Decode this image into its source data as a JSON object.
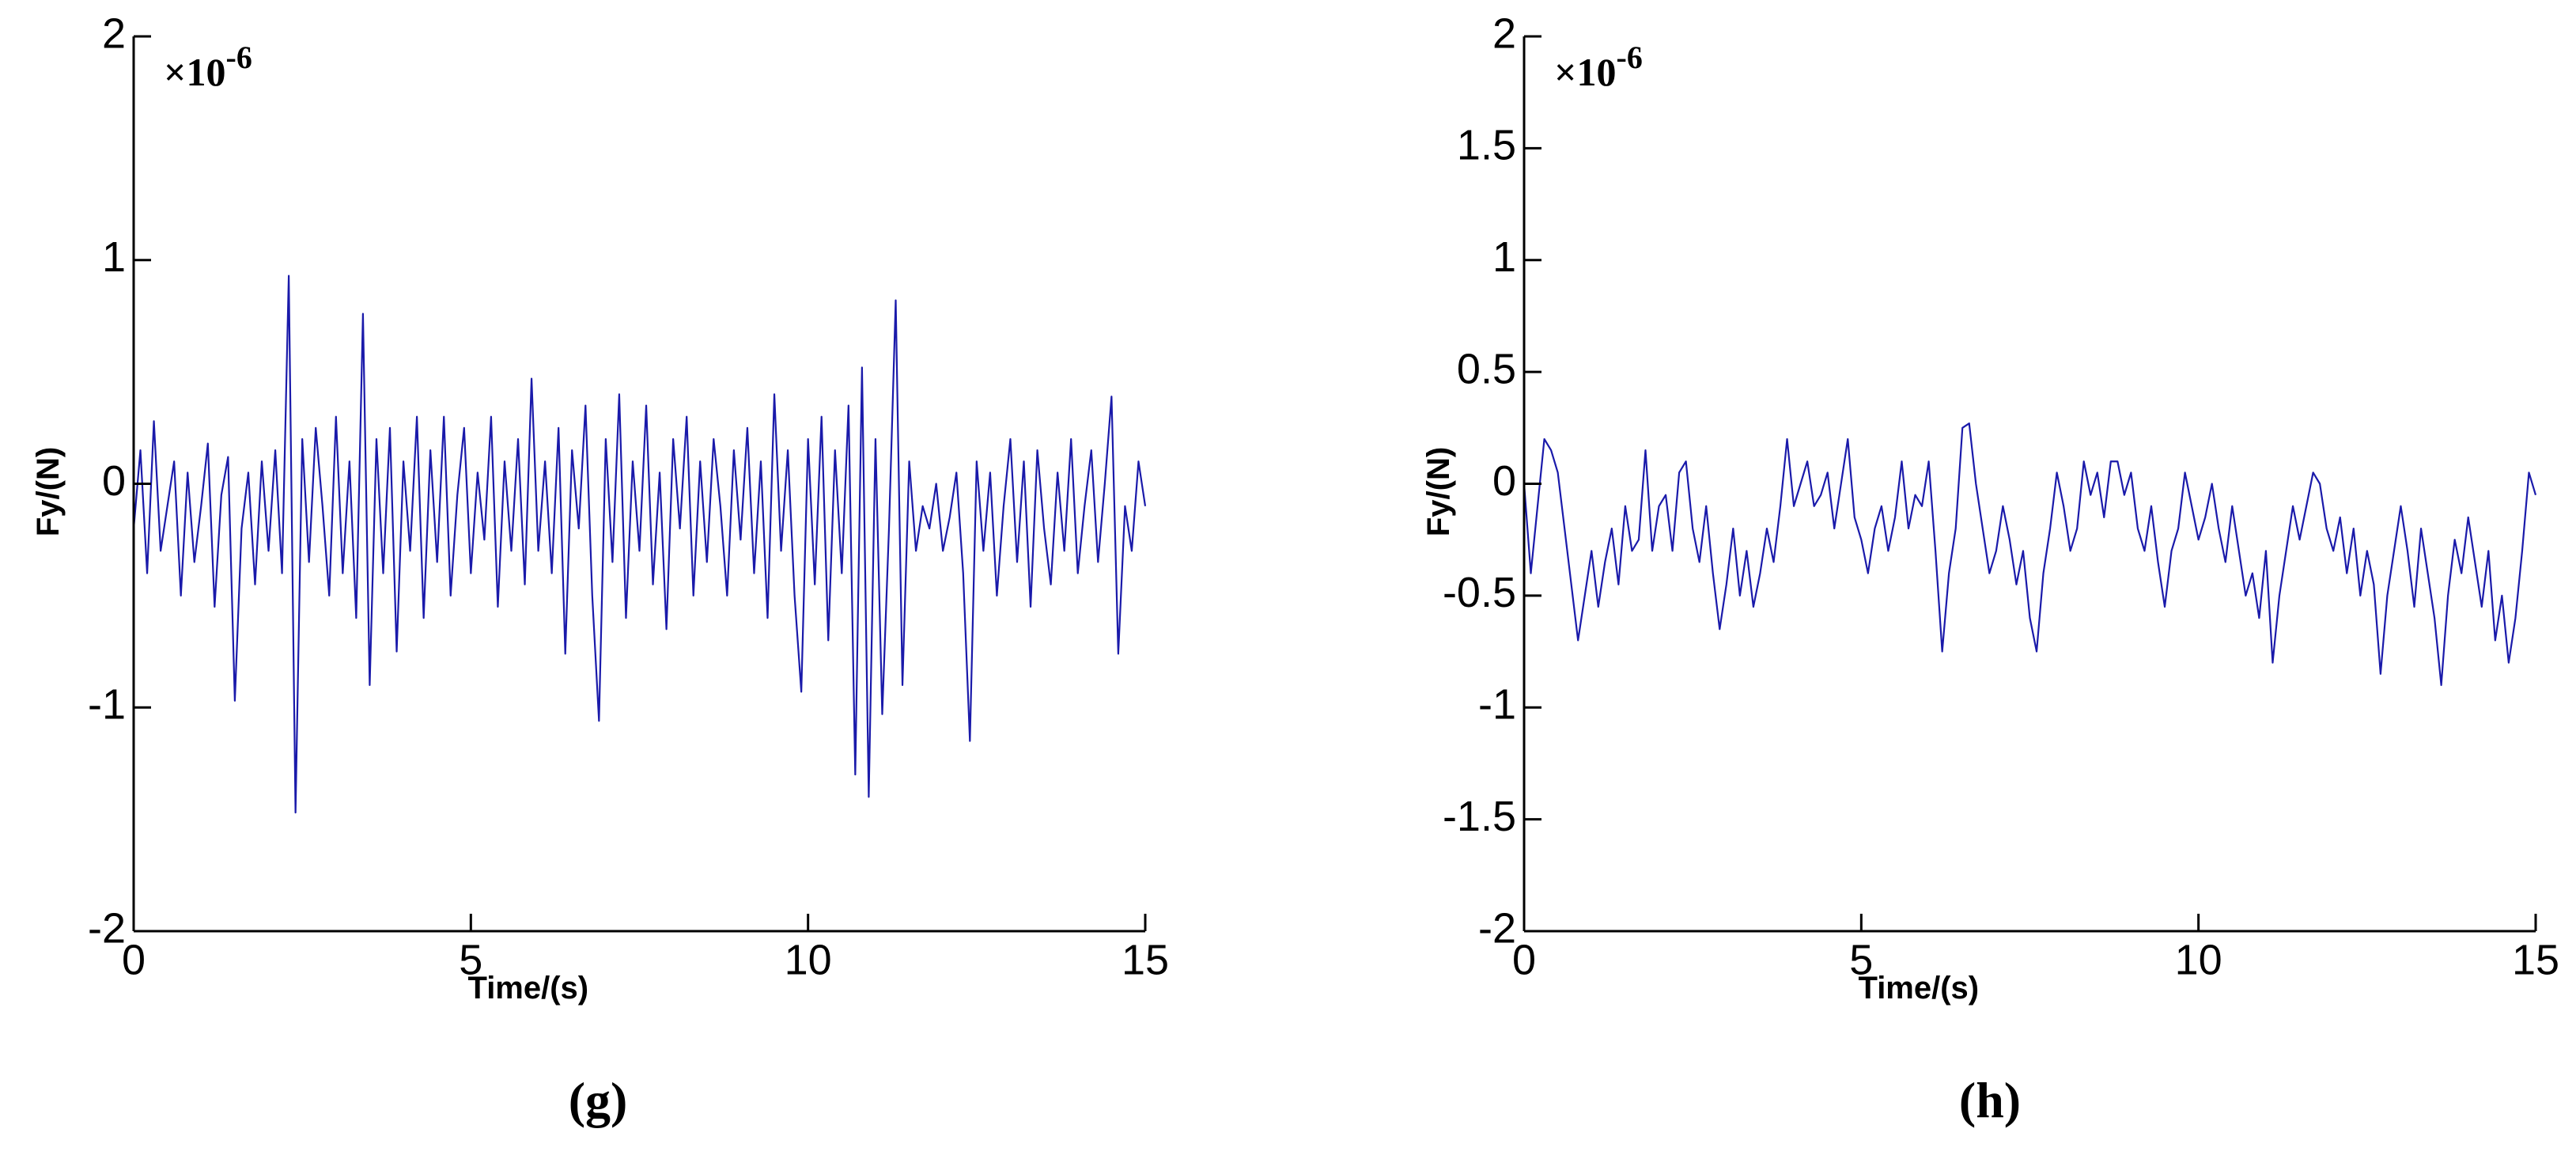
{
  "chart_data": [
    {
      "type": "line",
      "caption": "(g)",
      "x_label": "Time/(s)",
      "y_label": "Fy/(N)",
      "multiplier": {
        "base": "×10",
        "exponent": "-6"
      },
      "xlim": [
        0,
        15
      ],
      "xticks": [
        0,
        5,
        10,
        15
      ],
      "ylim": [
        -2,
        2
      ],
      "yticks": [
        -2,
        -1,
        0,
        1,
        2
      ],
      "color": "#1a1aaa",
      "x": [
        0,
        0.1,
        0.2,
        0.3,
        0.4,
        0.5,
        0.6,
        0.7,
        0.8,
        0.9,
        1,
        1.1,
        1.2,
        1.3,
        1.4,
        1.5,
        1.6,
        1.7,
        1.8,
        1.9,
        2,
        2.1,
        2.2,
        2.3,
        2.4,
        2.5,
        2.6,
        2.7,
        2.8,
        2.9,
        3,
        3.1,
        3.2,
        3.3,
        3.4,
        3.5,
        3.6,
        3.7,
        3.8,
        3.9,
        4,
        4.1,
        4.2,
        4.3,
        4.4,
        4.5,
        4.6,
        4.7,
        4.8,
        4.9,
        5,
        5.1,
        5.2,
        5.3,
        5.4,
        5.5,
        5.6,
        5.7,
        5.8,
        5.9,
        6,
        6.1,
        6.2,
        6.3,
        6.4,
        6.5,
        6.6,
        6.7,
        6.8,
        6.9,
        7,
        7.1,
        7.2,
        7.3,
        7.4,
        7.5,
        7.6,
        7.7,
        7.8,
        7.9,
        8,
        8.1,
        8.2,
        8.3,
        8.4,
        8.5,
        8.6,
        8.7,
        8.8,
        8.9,
        9,
        9.1,
        9.2,
        9.3,
        9.4,
        9.5,
        9.6,
        9.7,
        9.8,
        9.9,
        10,
        10.1,
        10.2,
        10.3,
        10.4,
        10.5,
        10.6,
        10.7,
        10.8,
        10.9,
        11,
        11.1,
        11.2,
        11.3,
        11.4,
        11.5,
        11.6,
        11.7,
        11.8,
        11.9,
        12,
        12.1,
        12.2,
        12.3,
        12.4,
        12.5,
        12.6,
        12.7,
        12.8,
        12.9,
        13,
        13.1,
        13.2,
        13.3,
        13.4,
        13.5,
        13.6,
        13.7,
        13.8,
        13.9,
        14,
        14.1,
        14.2,
        14.3,
        14.4,
        14.5,
        14.6,
        14.7,
        14.8,
        14.9,
        15
      ],
      "values": [
        -0.2,
        0.15,
        -0.4,
        0.28,
        -0.3,
        -0.1,
        0.1,
        -0.5,
        0.05,
        -0.35,
        -0.1,
        0.18,
        -0.55,
        -0.05,
        0.12,
        -0.97,
        -0.2,
        0.05,
        -0.45,
        0.1,
        -0.3,
        0.15,
        -0.4,
        0.93,
        -1.47,
        0.2,
        -0.35,
        0.25,
        -0.1,
        -0.5,
        0.3,
        -0.4,
        0.1,
        -0.6,
        0.76,
        -0.9,
        0.2,
        -0.4,
        0.25,
        -0.75,
        0.1,
        -0.3,
        0.3,
        -0.6,
        0.15,
        -0.35,
        0.3,
        -0.5,
        -0.05,
        0.25,
        -0.4,
        0.05,
        -0.25,
        0.3,
        -0.55,
        0.1,
        -0.3,
        0.2,
        -0.45,
        0.47,
        -0.3,
        0.1,
        -0.4,
        0.25,
        -0.76,
        0.15,
        -0.2,
        0.35,
        -0.5,
        -1.06,
        0.2,
        -0.35,
        0.4,
        -0.6,
        0.1,
        -0.3,
        0.35,
        -0.45,
        0.05,
        -0.65,
        0.2,
        -0.2,
        0.3,
        -0.5,
        0.1,
        -0.35,
        0.2,
        -0.1,
        -0.5,
        0.15,
        -0.25,
        0.25,
        -0.4,
        0.1,
        -0.6,
        0.4,
        -0.3,
        0.15,
        -0.5,
        -0.93,
        0.2,
        -0.45,
        0.3,
        -0.7,
        0.15,
        -0.4,
        0.35,
        -1.3,
        0.52,
        -1.4,
        0.2,
        -1.03,
        -0.2,
        0.82,
        -0.9,
        0.1,
        -0.3,
        -0.1,
        -0.2,
        0,
        -0.3,
        -0.15,
        0.05,
        -0.4,
        -1.15,
        0.1,
        -0.3,
        0.05,
        -0.5,
        -0.1,
        0.2,
        -0.35,
        0.1,
        -0.55,
        0.15,
        -0.2,
        -0.45,
        0.05,
        -0.3,
        0.2,
        -0.4,
        -0.1,
        0.15,
        -0.35,
        0,
        0.39,
        -0.76,
        -0.1,
        -0.3,
        0.1,
        -0.1
      ]
    },
    {
      "type": "line",
      "caption": "(h)",
      "x_label": "Time/(s)",
      "y_label": "Fy/(N)",
      "multiplier": {
        "base": "×10",
        "exponent": "-6"
      },
      "xlim": [
        0,
        15
      ],
      "xticks": [
        0,
        5,
        10,
        15
      ],
      "ylim": [
        -2,
        2
      ],
      "yticks": [
        -2,
        -1.5,
        -1,
        -0.5,
        0,
        0.5,
        1,
        1.5,
        2
      ],
      "color": "#1a1aaa",
      "x": [
        0,
        0.1,
        0.2,
        0.3,
        0.4,
        0.5,
        0.6,
        0.7,
        0.8,
        0.9,
        1,
        1.1,
        1.2,
        1.3,
        1.4,
        1.5,
        1.6,
        1.7,
        1.8,
        1.9,
        2,
        2.1,
        2.2,
        2.3,
        2.4,
        2.5,
        2.6,
        2.7,
        2.8,
        2.9,
        3,
        3.1,
        3.2,
        3.3,
        3.4,
        3.5,
        3.6,
        3.7,
        3.8,
        3.9,
        4,
        4.1,
        4.2,
        4.3,
        4.4,
        4.5,
        4.6,
        4.7,
        4.8,
        4.9,
        5,
        5.1,
        5.2,
        5.3,
        5.4,
        5.5,
        5.6,
        5.7,
        5.8,
        5.9,
        6,
        6.1,
        6.2,
        6.3,
        6.4,
        6.5,
        6.6,
        6.7,
        6.8,
        6.9,
        7,
        7.1,
        7.2,
        7.3,
        7.4,
        7.5,
        7.6,
        7.7,
        7.8,
        7.9,
        8,
        8.1,
        8.2,
        8.3,
        8.4,
        8.5,
        8.6,
        8.7,
        8.8,
        8.9,
        9,
        9.1,
        9.2,
        9.3,
        9.4,
        9.5,
        9.6,
        9.7,
        9.8,
        9.9,
        10,
        10.1,
        10.2,
        10.3,
        10.4,
        10.5,
        10.6,
        10.7,
        10.8,
        10.9,
        11,
        11.1,
        11.2,
        11.3,
        11.4,
        11.5,
        11.6,
        11.7,
        11.8,
        11.9,
        12,
        12.1,
        12.2,
        12.3,
        12.4,
        12.5,
        12.6,
        12.7,
        12.8,
        12.9,
        13,
        13.1,
        13.2,
        13.3,
        13.4,
        13.5,
        13.6,
        13.7,
        13.8,
        13.9,
        14,
        14.1,
        14.2,
        14.3,
        14.4,
        14.5,
        14.6,
        14.7,
        14.8,
        14.9,
        15
      ],
      "values": [
        0,
        -0.4,
        -0.1,
        0.2,
        0.15,
        0.05,
        -0.2,
        -0.45,
        -0.7,
        -0.5,
        -0.3,
        -0.55,
        -0.35,
        -0.2,
        -0.45,
        -0.1,
        -0.3,
        -0.25,
        0.15,
        -0.3,
        -0.1,
        -0.05,
        -0.3,
        0.05,
        0.1,
        -0.2,
        -0.35,
        -0.1,
        -0.4,
        -0.65,
        -0.45,
        -0.2,
        -0.5,
        -0.3,
        -0.55,
        -0.4,
        -0.2,
        -0.35,
        -0.1,
        0.2,
        -0.1,
        0,
        0.1,
        -0.1,
        -0.05,
        0.05,
        -0.2,
        0,
        0.2,
        -0.15,
        -0.25,
        -0.4,
        -0.2,
        -0.1,
        -0.3,
        -0.15,
        0.1,
        -0.2,
        -0.05,
        -0.1,
        0.1,
        -0.3,
        -0.75,
        -0.4,
        -0.2,
        0.25,
        0.27,
        0,
        -0.2,
        -0.4,
        -0.3,
        -0.1,
        -0.25,
        -0.45,
        -0.3,
        -0.6,
        -0.75,
        -0.4,
        -0.2,
        0.05,
        -0.1,
        -0.3,
        -0.2,
        0.1,
        -0.05,
        0.05,
        -0.15,
        0.1,
        0.1,
        -0.05,
        0.05,
        -0.2,
        -0.3,
        -0.1,
        -0.35,
        -0.55,
        -0.3,
        -0.2,
        0.05,
        -0.1,
        -0.25,
        -0.15,
        0,
        -0.2,
        -0.35,
        -0.1,
        -0.3,
        -0.5,
        -0.4,
        -0.6,
        -0.3,
        -0.8,
        -0.5,
        -0.3,
        -0.1,
        -0.25,
        -0.1,
        0.05,
        0,
        -0.2,
        -0.3,
        -0.15,
        -0.4,
        -0.2,
        -0.5,
        -0.3,
        -0.45,
        -0.85,
        -0.5,
        -0.3,
        -0.1,
        -0.3,
        -0.55,
        -0.2,
        -0.4,
        -0.6,
        -0.9,
        -0.5,
        -0.25,
        -0.4,
        -0.15,
        -0.35,
        -0.55,
        -0.3,
        -0.7,
        -0.5,
        -0.8,
        -0.6,
        -0.3,
        0.05,
        -0.05
      ]
    }
  ]
}
